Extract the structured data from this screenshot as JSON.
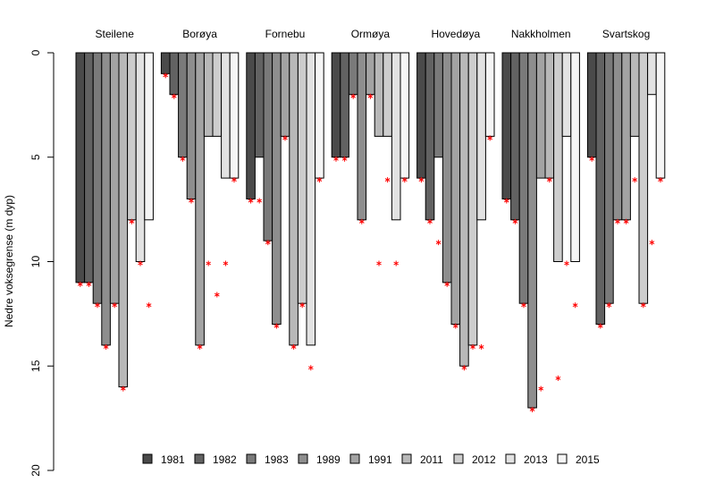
{
  "chart_data": {
    "type": "bar",
    "orientation": "hanging",
    "y_inverted": true,
    "y_label": "Nedre voksegrense (m dyp)",
    "ylim": [
      0,
      20
    ],
    "yticks": [
      0,
      5,
      10,
      15,
      20
    ],
    "legend_position": "bottom",
    "marker_color": "#ff0000",
    "categories": [
      "Steilene",
      "Borøya",
      "Fornebu",
      "Ormøya",
      "Hovedøya",
      "Nakkholmen",
      "Svartskog"
    ],
    "series": [
      {
        "name": "1981",
        "color": "#4a4a4a",
        "values": [
          11,
          1,
          7,
          5,
          6,
          7,
          5
        ],
        "points": [
          11,
          1,
          7,
          5,
          6,
          7,
          5
        ]
      },
      {
        "name": "1982",
        "color": "#626262",
        "values": [
          11,
          2,
          5,
          5,
          8,
          8,
          13
        ],
        "points": [
          11,
          2,
          7,
          5,
          8,
          8,
          13
        ]
      },
      {
        "name": "1983",
        "color": "#7a7a7a",
        "values": [
          12,
          5,
          9,
          2,
          5,
          12,
          12
        ],
        "points": [
          12,
          5,
          9,
          2,
          9,
          12,
          12
        ]
      },
      {
        "name": "1989",
        "color": "#8e8e8e",
        "values": [
          14,
          7,
          13,
          8,
          11,
          17,
          8
        ],
        "points": [
          14,
          7,
          13,
          8,
          11,
          17,
          8
        ]
      },
      {
        "name": "1991",
        "color": "#a3a3a3",
        "values": [
          12,
          14,
          4,
          2,
          13,
          6,
          8
        ],
        "points": [
          12,
          14,
          4,
          2,
          13,
          16,
          8
        ]
      },
      {
        "name": "2011",
        "color": "#b8b8b8",
        "values": [
          16,
          4,
          14,
          4,
          15,
          6,
          4
        ],
        "points": [
          16,
          10,
          14,
          10,
          15,
          6,
          6
        ]
      },
      {
        "name": "2012",
        "color": "#cdcdcd",
        "values": [
          8,
          4,
          12,
          4,
          14,
          10,
          12
        ],
        "points": [
          8,
          11.5,
          12,
          6,
          14,
          15.5,
          12
        ]
      },
      {
        "name": "2013",
        "color": "#e2e2e2",
        "values": [
          10,
          6,
          14,
          8,
          8,
          4,
          2
        ],
        "points": [
          10,
          10,
          15,
          10,
          14,
          10,
          9
        ]
      },
      {
        "name": "2015",
        "color": "#f5f5f5",
        "values": [
          8,
          6,
          6,
          6,
          4,
          10,
          6
        ],
        "points": [
          12,
          6,
          6,
          6,
          4,
          12,
          6
        ]
      }
    ]
  }
}
